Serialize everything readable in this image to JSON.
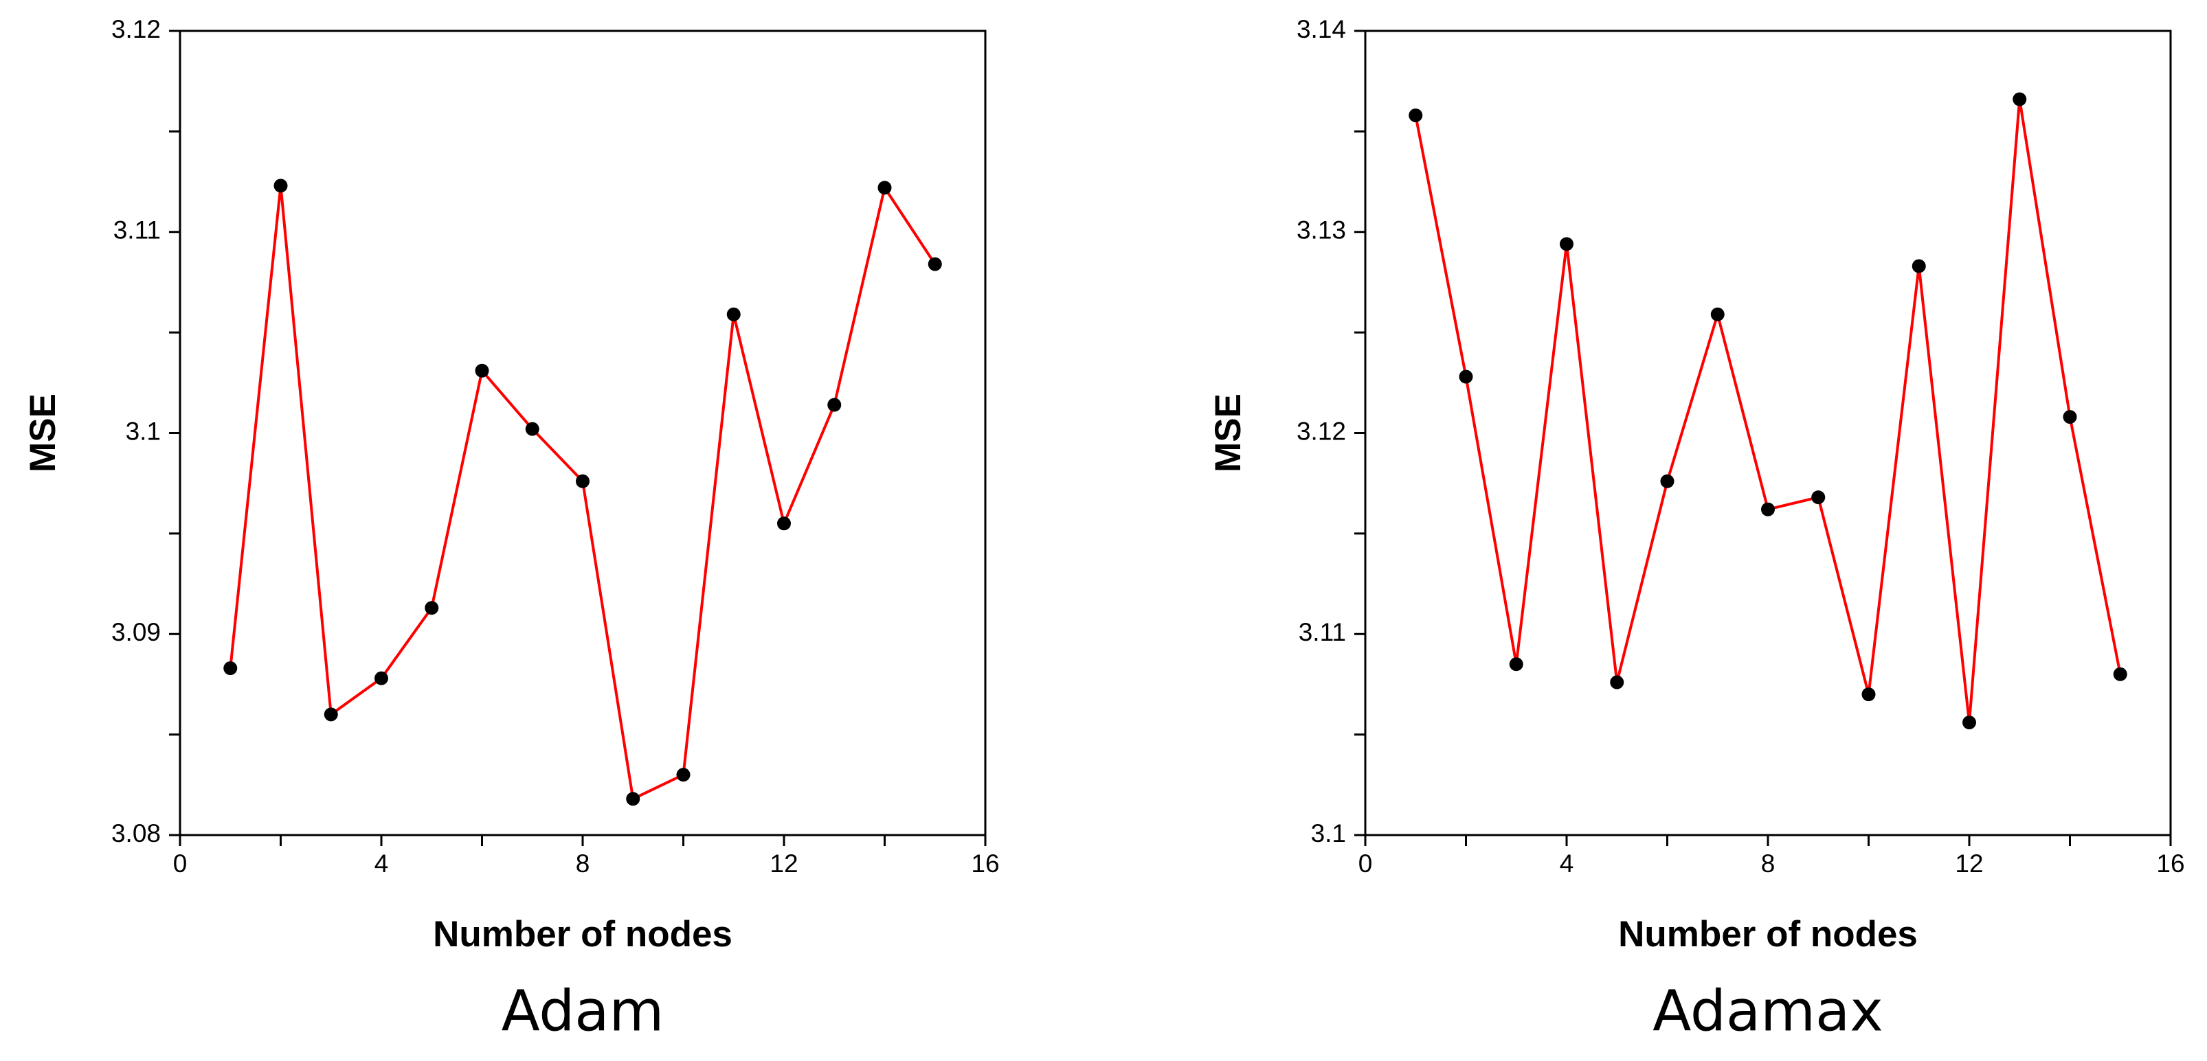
{
  "chart_data": [
    {
      "type": "line",
      "title": "Adam",
      "xlabel": "Number of nodes",
      "ylabel": "MSE",
      "x": [
        1,
        2,
        3,
        4,
        5,
        6,
        7,
        8,
        9,
        10,
        11,
        12,
        13,
        14,
        15
      ],
      "values": [
        3.0883,
        3.1123,
        3.086,
        3.0878,
        3.0913,
        3.1031,
        3.1002,
        3.0976,
        3.0818,
        3.083,
        3.1059,
        3.0955,
        3.1014,
        3.1122,
        3.1084
      ],
      "color": "#ff0000",
      "marker_color": "#000000",
      "xlim": [
        0,
        16
      ],
      "xticks": [
        0,
        4,
        8,
        12,
        16
      ],
      "ylim": [
        3.08,
        3.12
      ],
      "yticks": [
        3.08,
        3.09,
        3.1,
        3.11,
        3.12
      ]
    },
    {
      "type": "line",
      "title": "Adamax",
      "xlabel": "Number of nodes",
      "ylabel": "MSE",
      "x": [
        1,
        2,
        3,
        4,
        5,
        6,
        7,
        8,
        9,
        10,
        11,
        12,
        13,
        14,
        15
      ],
      "values": [
        3.1358,
        3.1228,
        3.1085,
        3.1294,
        3.1076,
        3.1176,
        3.1259,
        3.1162,
        3.1168,
        3.107,
        3.1283,
        3.1056,
        3.1366,
        3.1208,
        3.108
      ],
      "color": "#ff0000",
      "marker_color": "#000000",
      "xlim": [
        0,
        16
      ],
      "xticks": [
        0,
        4,
        8,
        12,
        16
      ],
      "ylim": [
        3.1,
        3.14
      ],
      "yticks": [
        3.1,
        3.11,
        3.12,
        3.13,
        3.14
      ]
    }
  ]
}
